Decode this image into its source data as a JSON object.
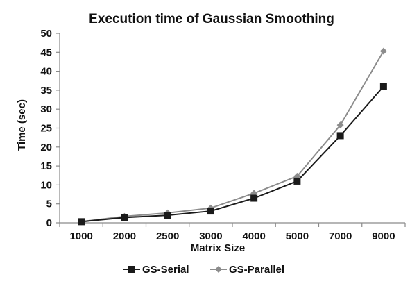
{
  "chart_data": {
    "type": "line",
    "title": "Execution time of Gaussian Smoothing",
    "xlabel": "Matrix Size",
    "ylabel": "Time (sec)",
    "categories": [
      "1000",
      "2000",
      "2500",
      "3000",
      "4000",
      "5000",
      "7000",
      "9000"
    ],
    "ylim": [
      0,
      50
    ],
    "yticks": [
      "0",
      "5",
      "10",
      "15",
      "20",
      "25",
      "30",
      "35",
      "40",
      "45",
      "50"
    ],
    "grid": false,
    "legend": "bottom",
    "series": [
      {
        "name": "GS-Serial",
        "color": "#1a1a1a",
        "marker": "square",
        "values": [
          0.3,
          1.4,
          2.0,
          3.1,
          6.5,
          11.0,
          23.0,
          36.0
        ]
      },
      {
        "name": "GS-Parallel",
        "color": "#8c8c8c",
        "marker": "diamond",
        "values": [
          0.3,
          1.7,
          2.6,
          3.9,
          7.8,
          12.3,
          25.8,
          45.3
        ]
      }
    ]
  }
}
